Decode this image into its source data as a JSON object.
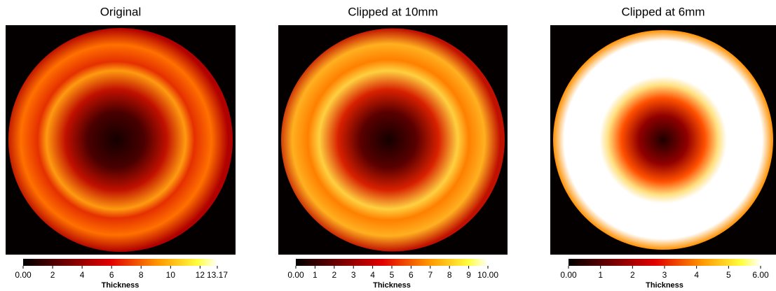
{
  "chart_data": [
    {
      "type": "heatmap",
      "title": "Original",
      "colorbar": {
        "label": "Thickness",
        "lim": [
          0,
          13.17
        ],
        "ticks": [
          {
            "value": 0,
            "label": "0.00"
          },
          2,
          4,
          6,
          8,
          10,
          12,
          {
            "value": 13.17,
            "label": "13.17"
          }
        ]
      }
    },
    {
      "type": "heatmap",
      "title": "Clipped at 10mm",
      "colorbar": {
        "label": "Thickness",
        "lim": [
          0,
          10
        ],
        "ticks": [
          {
            "value": 0,
            "label": "0.00"
          },
          1,
          2,
          3,
          4,
          5,
          6,
          7,
          8,
          9,
          {
            "value": 10,
            "label": "10.00"
          }
        ]
      }
    },
    {
      "type": "heatmap",
      "title": "Clipped at 6mm",
      "colorbar": {
        "label": "Thickness",
        "lim": [
          0,
          6
        ],
        "ticks": [
          {
            "value": 0,
            "label": "0.00"
          },
          1,
          2,
          3,
          4,
          5,
          {
            "value": 6,
            "label": "6.00"
          }
        ]
      }
    }
  ]
}
